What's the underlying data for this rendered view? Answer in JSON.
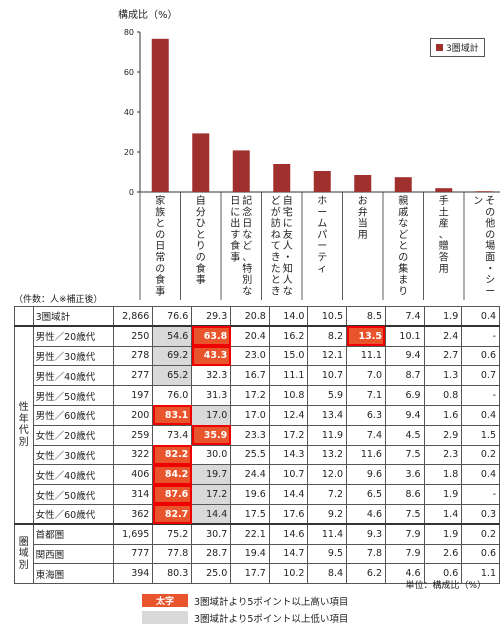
{
  "y_unit": "構成比（%）",
  "table_caption": "（件数：人※補正後）",
  "unit_note": "単位：構成比（%）",
  "legend_label": "3圏域計",
  "key": {
    "high_swatch": "太字",
    "high_text": "3圏域計より5ポイント以上高い項目",
    "low_text": "3圏域計より5ポイント以上低い項目"
  },
  "colors": {
    "bar": "#a0302e",
    "high": "#e8552c",
    "low": "#d9d9d9"
  },
  "chart_data": {
    "type": "bar",
    "categories": [
      "家族との日常の食事",
      "自分ひとりの食事",
      "記念日など、特別な日に出す食事",
      "自宅に友人・知人などが訪ねてきたとき",
      "ホームパーティ",
      "お弁当用",
      "親戚などとの集まり",
      "手土産、贈答用",
      "その他の場面・シーン"
    ],
    "series": [
      {
        "name": "3圏域計",
        "values": [
          76.6,
          29.3,
          20.8,
          14.0,
          10.5,
          8.5,
          7.4,
          1.9,
          0.4
        ]
      }
    ],
    "ylim": [
      0,
      80
    ],
    "yticks": [
      0,
      20,
      40,
      60,
      80
    ]
  },
  "table": {
    "groups": [
      {
        "label": "",
        "rows": [
          {
            "label": "3圏域計",
            "count": "2,866",
            "values": [
              "76.6",
              "29.3",
              "20.8",
              "14.0",
              "10.5",
              "8.5",
              "7.4",
              "1.9",
              "0.4"
            ],
            "marks": [
              "",
              "",
              "",
              "",
              "",
              "",
              "",
              "",
              ""
            ]
          }
        ]
      },
      {
        "label": "性年代別",
        "rows": [
          {
            "label": "男性／20歳代",
            "count": "250",
            "values": [
              "54.6",
              "63.8",
              "20.4",
              "16.2",
              "8.2",
              "13.5",
              "10.1",
              "2.4",
              "-"
            ],
            "marks": [
              "lo",
              "hi",
              "",
              "",
              "",
              "hi",
              "",
              "",
              ""
            ]
          },
          {
            "label": "男性／30歳代",
            "count": "278",
            "values": [
              "69.2",
              "43.3",
              "23.0",
              "15.0",
              "12.1",
              "11.1",
              "9.4",
              "2.7",
              "0.6"
            ],
            "marks": [
              "lo",
              "hi",
              "",
              "",
              "",
              "",
              "",
              "",
              ""
            ]
          },
          {
            "label": "男性／40歳代",
            "count": "277",
            "values": [
              "65.2",
              "32.3",
              "16.7",
              "11.1",
              "10.7",
              "7.0",
              "8.7",
              "1.3",
              "0.7"
            ],
            "marks": [
              "lo",
              "",
              "",
              "",
              "",
              "",
              "",
              "",
              ""
            ]
          },
          {
            "label": "男性／50歳代",
            "count": "197",
            "values": [
              "76.0",
              "31.3",
              "17.2",
              "10.8",
              "5.9",
              "7.1",
              "6.9",
              "0.8",
              "-"
            ],
            "marks": [
              "",
              "",
              "",
              "",
              "",
              "",
              "",
              "",
              ""
            ]
          },
          {
            "label": "男性／60歳代",
            "count": "200",
            "values": [
              "83.1",
              "17.0",
              "17.0",
              "12.4",
              "13.4",
              "6.3",
              "9.4",
              "1.6",
              "0.4"
            ],
            "marks": [
              "hi",
              "lo",
              "",
              "",
              "",
              "",
              "",
              "",
              ""
            ]
          },
          {
            "label": "女性／20歳代",
            "count": "259",
            "values": [
              "73.4",
              "35.9",
              "23.3",
              "17.2",
              "11.9",
              "7.4",
              "4.5",
              "2.9",
              "1.5"
            ],
            "marks": [
              "",
              "hi",
              "",
              "",
              "",
              "",
              "",
              "",
              ""
            ]
          },
          {
            "label": "女性／30歳代",
            "count": "322",
            "values": [
              "82.2",
              "30.0",
              "25.5",
              "14.3",
              "13.2",
              "11.6",
              "7.5",
              "2.3",
              "0.2"
            ],
            "marks": [
              "hi",
              "",
              "",
              "",
              "",
              "",
              "",
              "",
              ""
            ]
          },
          {
            "label": "女性／40歳代",
            "count": "406",
            "values": [
              "84.2",
              "19.7",
              "24.4",
              "10.7",
              "12.0",
              "9.6",
              "3.6",
              "1.8",
              "0.4"
            ],
            "marks": [
              "hi",
              "lo",
              "",
              "",
              "",
              "",
              "",
              "",
              ""
            ]
          },
          {
            "label": "女性／50歳代",
            "count": "314",
            "values": [
              "87.6",
              "17.2",
              "19.6",
              "14.4",
              "7.2",
              "6.5",
              "8.6",
              "1.9",
              "-"
            ],
            "marks": [
              "hi",
              "lo",
              "",
              "",
              "",
              "",
              "",
              "",
              ""
            ]
          },
          {
            "label": "女性／60歳代",
            "count": "362",
            "values": [
              "82.7",
              "14.4",
              "17.5",
              "17.6",
              "9.2",
              "4.6",
              "7.5",
              "1.4",
              "0.3"
            ],
            "marks": [
              "hi",
              "lo",
              "",
              "",
              "",
              "",
              "",
              "",
              ""
            ]
          }
        ]
      },
      {
        "label": "圏域別",
        "rows": [
          {
            "label": "首都圏",
            "count": "1,695",
            "values": [
              "75.2",
              "30.7",
              "22.1",
              "14.6",
              "11.4",
              "9.3",
              "7.9",
              "1.9",
              "0.2"
            ],
            "marks": [
              "",
              "",
              "",
              "",
              "",
              "",
              "",
              "",
              ""
            ]
          },
          {
            "label": "関西圏",
            "count": "777",
            "values": [
              "77.8",
              "28.7",
              "19.4",
              "14.7",
              "9.5",
              "7.8",
              "7.9",
              "2.6",
              "0.6"
            ],
            "marks": [
              "",
              "",
              "",
              "",
              "",
              "",
              "",
              "",
              ""
            ]
          },
          {
            "label": "東海圏",
            "count": "394",
            "values": [
              "80.3",
              "25.0",
              "17.7",
              "10.2",
              "8.4",
              "6.2",
              "4.6",
              "0.6",
              "1.1"
            ],
            "marks": [
              "",
              "",
              "",
              "",
              "",
              "",
              "",
              "",
              ""
            ]
          }
        ]
      }
    ]
  }
}
